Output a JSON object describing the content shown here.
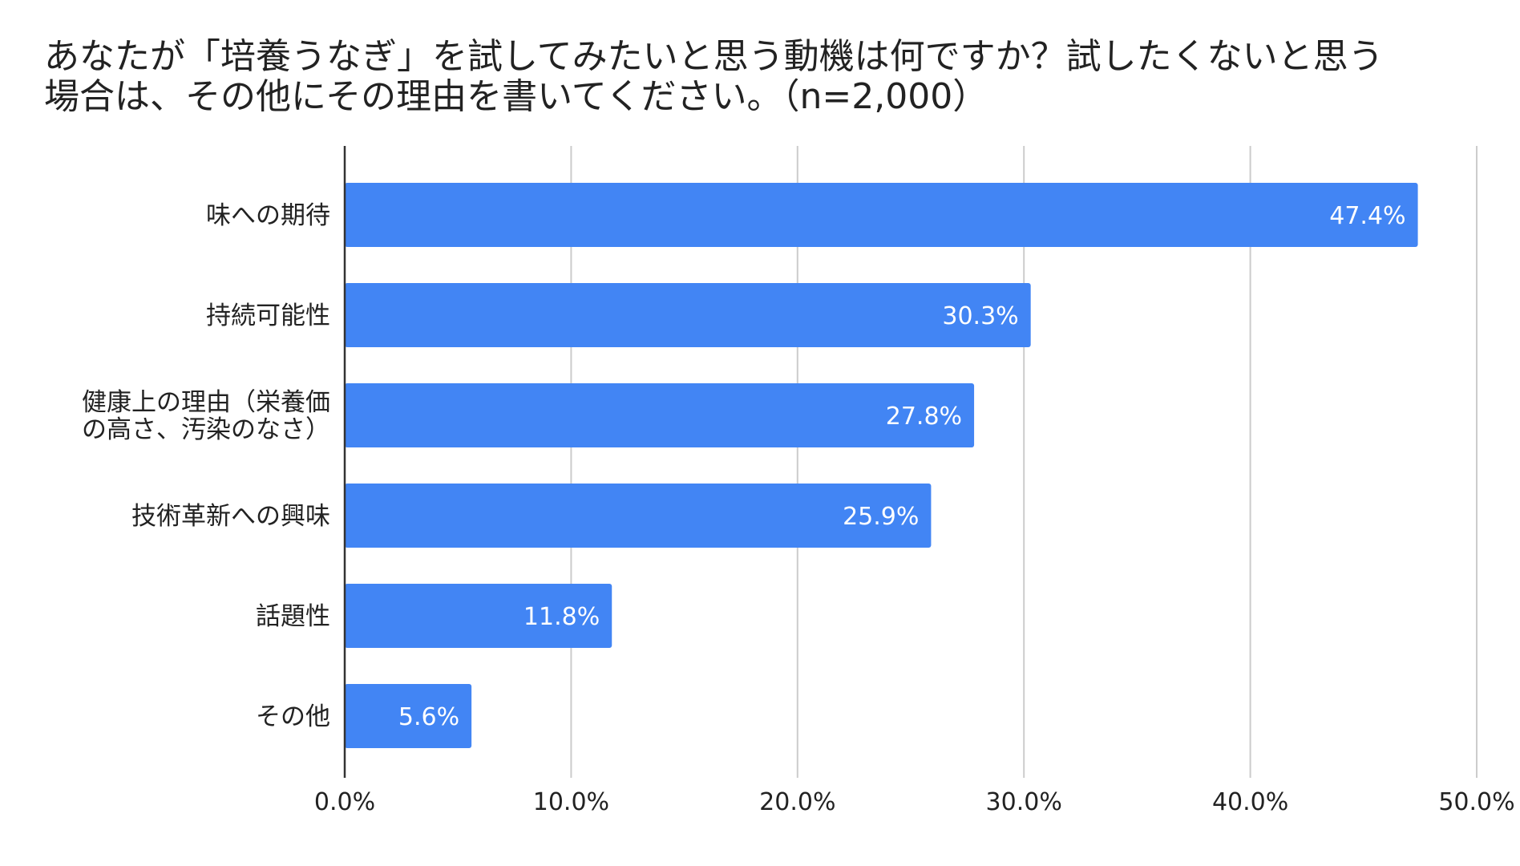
{
  "chart_data": {
    "type": "bar",
    "orientation": "horizontal",
    "title": "あなたが「培養うなぎ」を試してみたいと思う動機は何ですか？試したくないと思う\n場合は、その他にその理由を書いてください。（n=2,000）",
    "categories": [
      [
        "味への期待"
      ],
      [
        "持続可能性"
      ],
      [
        "健康上の理由（栄養価",
        "の高さ、汚染のなさ）"
      ],
      [
        "技術革新への興味"
      ],
      [
        "話題性"
      ],
      [
        "その他"
      ]
    ],
    "values": [
      47.4,
      30.3,
      27.8,
      25.9,
      11.8,
      5.6
    ],
    "value_labels": [
      "47.4%",
      "30.3%",
      "27.8%",
      "25.9%",
      "11.8%",
      "5.6%"
    ],
    "xlim": [
      0,
      50
    ],
    "xticks": [
      0,
      10,
      20,
      30,
      40,
      50
    ],
    "xtick_labels": [
      "0.0%",
      "10.0%",
      "20.0%",
      "30.0%",
      "40.0%",
      "50.0%"
    ],
    "grid": true,
    "legend": "none",
    "bar_color": "#4285f4",
    "grid_color": "#cccccc",
    "axis_color": "#333333"
  }
}
